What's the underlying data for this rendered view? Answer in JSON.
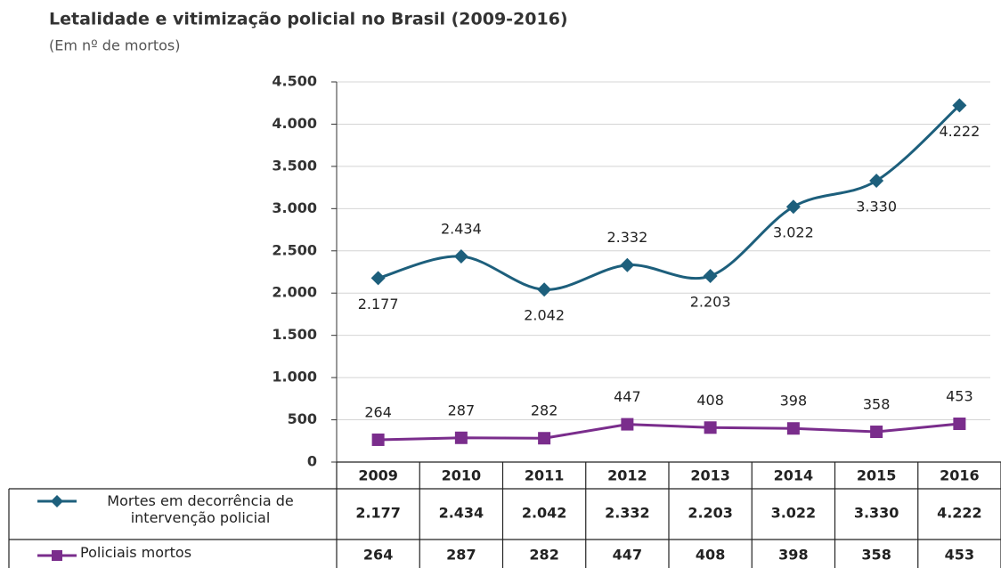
{
  "chart_data": {
    "type": "line",
    "title": "Letalidade e vitimização policial no Brasil (2009-2016)",
    "subtitle": "(Em nº de mortos)",
    "categories": [
      "2009",
      "2010",
      "2011",
      "2012",
      "2013",
      "2014",
      "2015",
      "2016"
    ],
    "series": [
      {
        "name": "Mortes em decorrência de intervenção policial",
        "color": "#1d5f7c",
        "marker": "diamond",
        "values": [
          2177,
          2434,
          2042,
          2332,
          2203,
          3022,
          3330,
          4222
        ],
        "value_labels": [
          "2.177",
          "2.434",
          "2.042",
          "2.332",
          "2.203",
          "3.022",
          "3.330",
          "4.222"
        ]
      },
      {
        "name": "Policiais mortos",
        "color": "#7a2d8c",
        "marker": "square",
        "values": [
          264,
          287,
          282,
          447,
          408,
          398,
          358,
          453
        ]
      }
    ],
    "ylim": [
      0,
      4500
    ],
    "yticks": [
      0,
      500,
      {
        "value": 1000,
        "label": "1.000"
      },
      {
        "value": 1500,
        "label": "1.500"
      },
      {
        "value": 2000,
        "label": "2.000"
      },
      {
        "value": 2500,
        "label": "2.500"
      },
      {
        "value": 3000,
        "label": "3.000"
      },
      {
        "value": 3500,
        "label": "3.500"
      },
      {
        "value": 4000,
        "label": "4.000"
      },
      {
        "value": 4500,
        "label": "4.500"
      }
    ],
    "grid": true
  }
}
